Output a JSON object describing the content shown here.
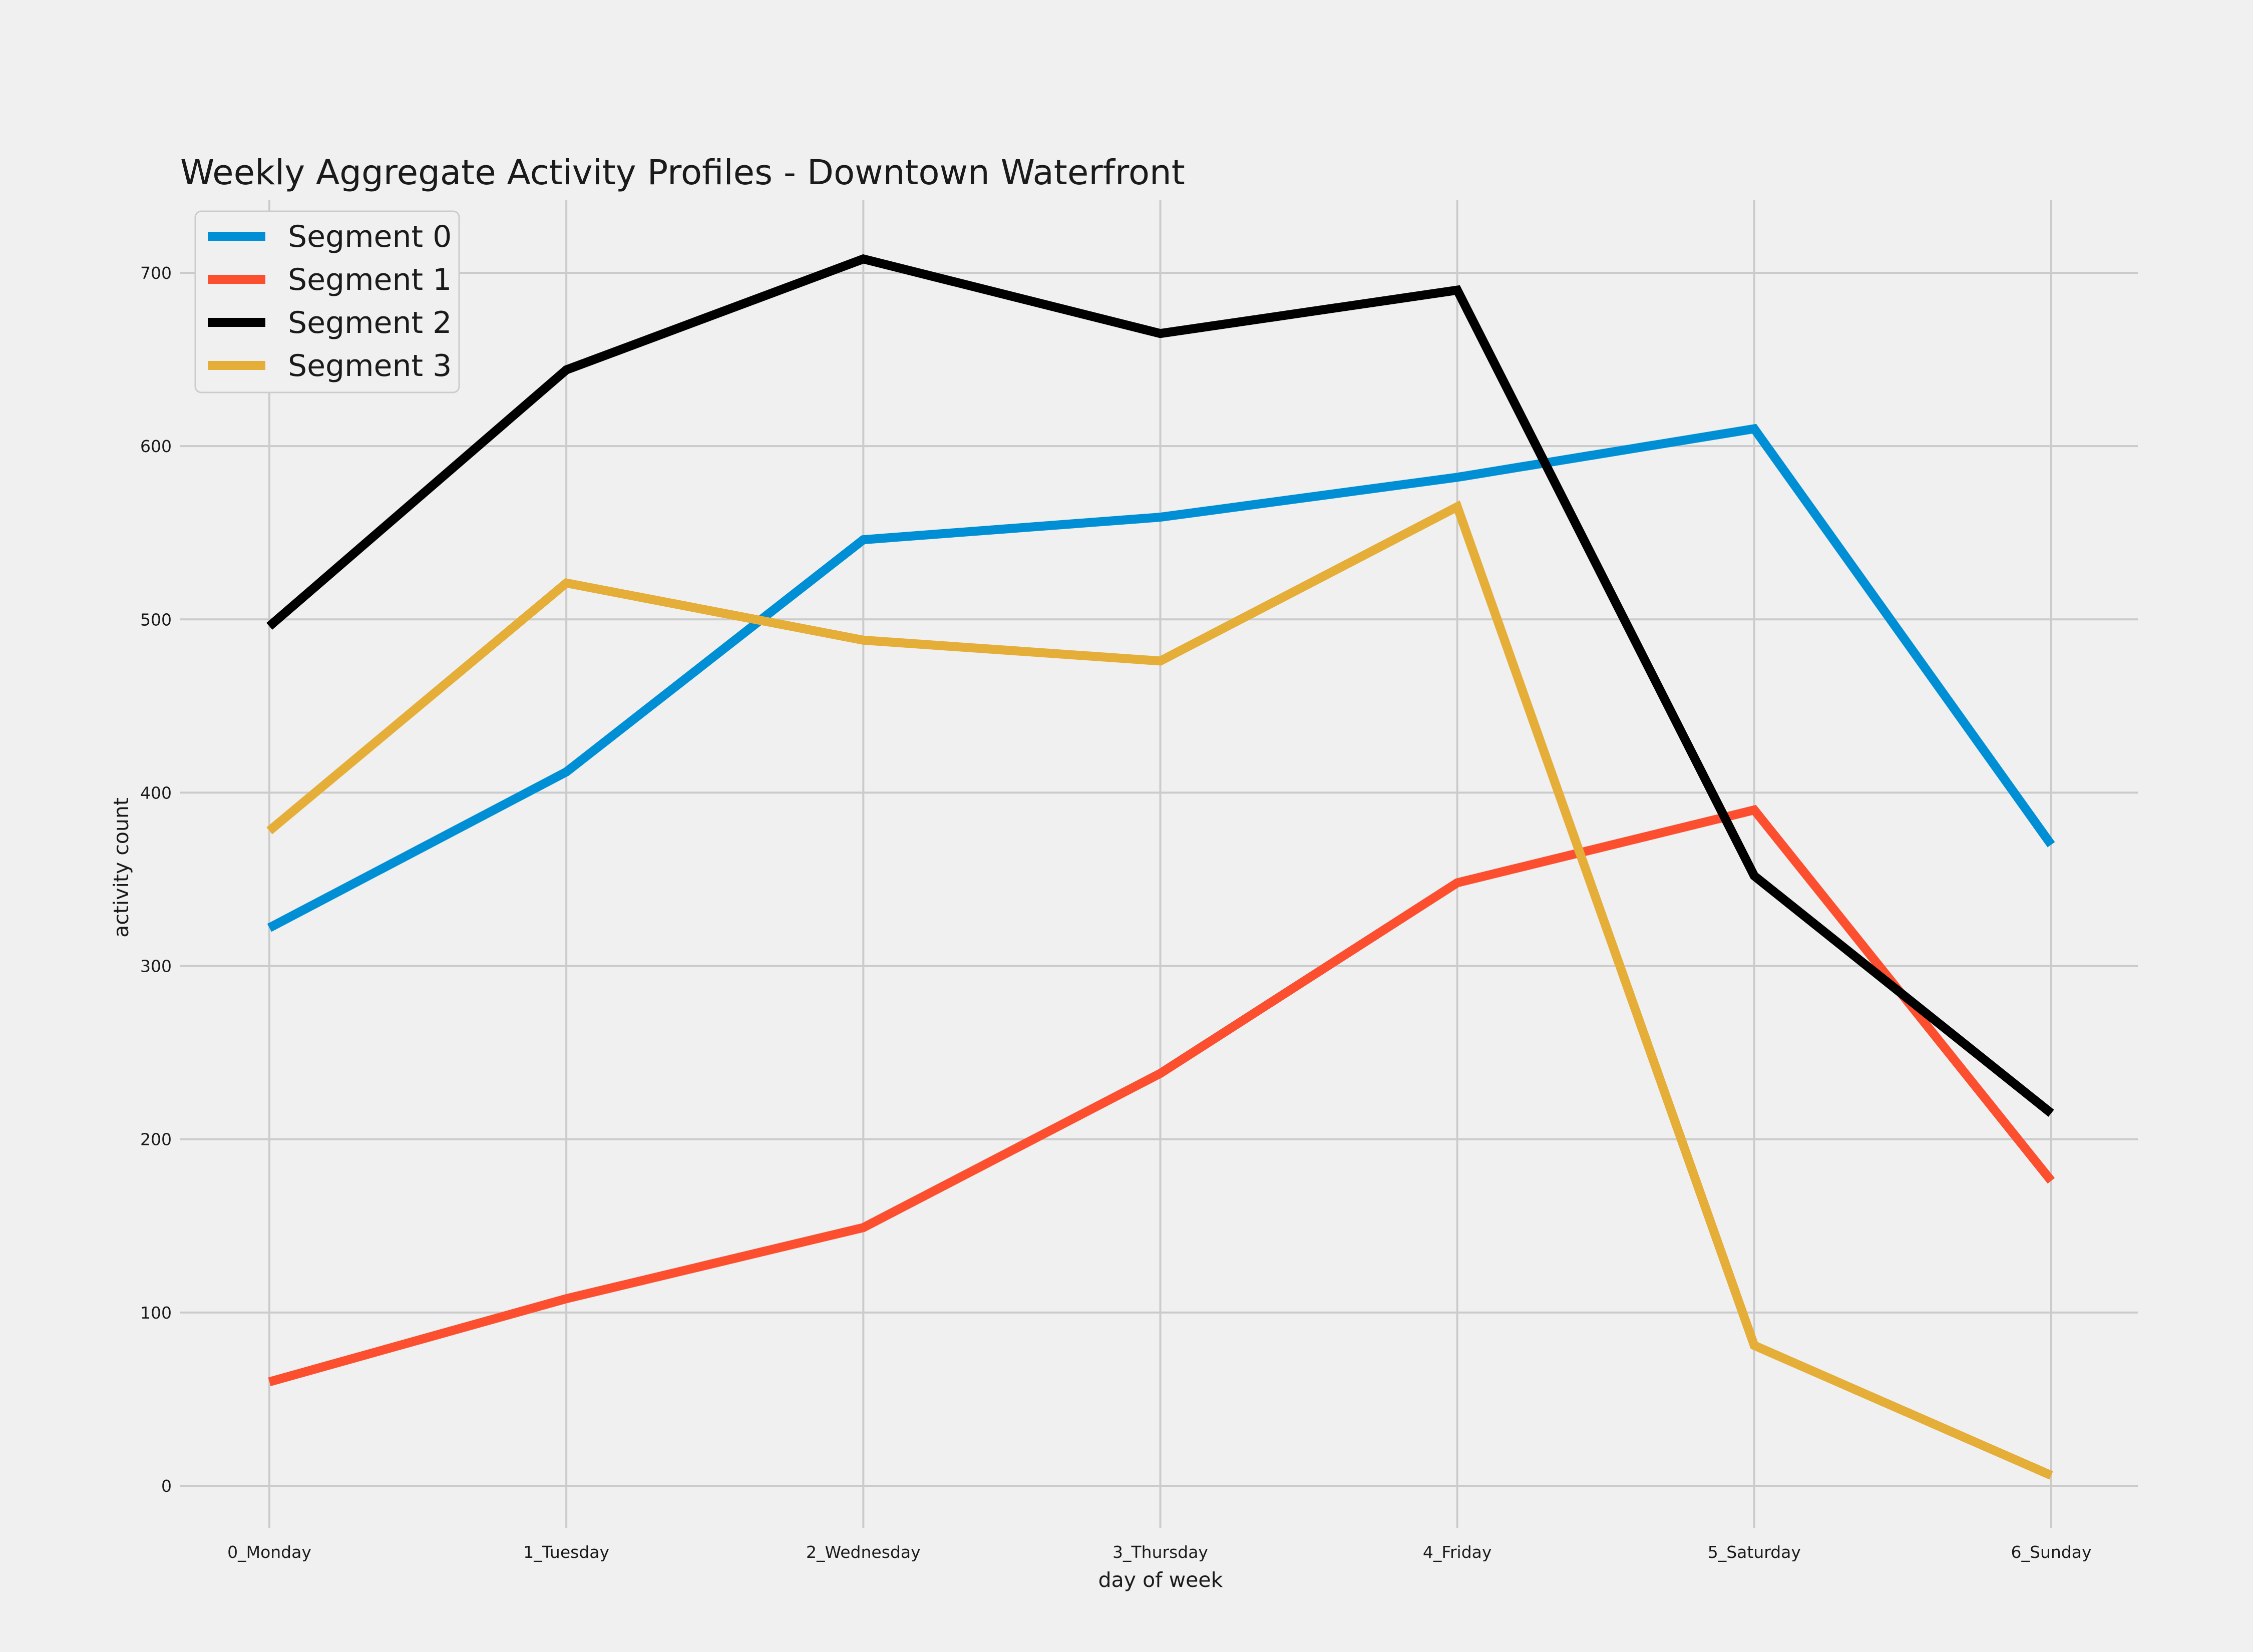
{
  "chart_data": {
    "type": "line",
    "title": "Weekly Aggregate Activity Profiles - Downtown Waterfront",
    "xlabel": "day of week",
    "ylabel": "activity count",
    "categories": [
      "0_Monday",
      "1_Tuesday",
      "2_Wednesday",
      "3_Thursday",
      "4_Friday",
      "5_Saturday",
      "6_Sunday"
    ],
    "ylim": [
      -25,
      740
    ],
    "yticks": [
      0,
      100,
      200,
      300,
      400,
      500,
      600,
      700
    ],
    "grid": true,
    "legend_position": "top-left",
    "series": [
      {
        "name": "Segment 0",
        "color": "#008fd5",
        "values": [
          322,
          412,
          546,
          559,
          582,
          610,
          370
        ]
      },
      {
        "name": "Segment 1",
        "color": "#fc4f30",
        "values": [
          60,
          108,
          149,
          238,
          348,
          390,
          176
        ]
      },
      {
        "name": "Segment 2",
        "color": "#000000",
        "values": [
          496,
          644,
          708,
          665,
          690,
          352,
          215
        ]
      },
      {
        "name": "Segment 3",
        "color": "#e5ae38",
        "values": [
          378,
          521,
          488,
          476,
          565,
          81,
          6
        ]
      }
    ]
  }
}
